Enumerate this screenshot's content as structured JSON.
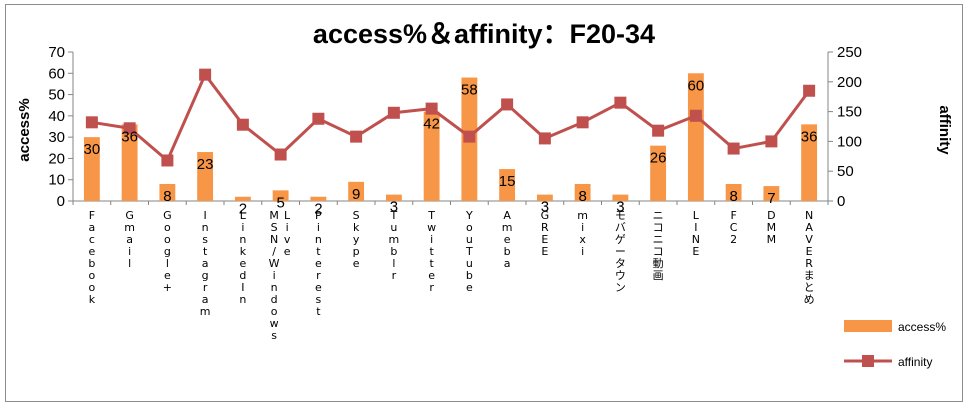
{
  "chart_data": {
    "type": "bar",
    "title": "access%＆affinity：F20-34",
    "ylabel": "access%",
    "y2label": "affinity",
    "ylim": [
      0,
      70
    ],
    "y2lim": [
      0,
      250
    ],
    "yticks": [
      0,
      10,
      20,
      30,
      40,
      50,
      60,
      70
    ],
    "y2ticks": [
      0,
      50,
      100,
      150,
      200,
      250
    ],
    "grid": false,
    "legend_position": "bottom-right",
    "categories": [
      "Facebook",
      "Gmail",
      "Google+",
      "Instagram",
      "LinkedIn",
      "MSN/Windows Live",
      "Pinterest",
      "Skype",
      "Tumblr",
      "Twitter",
      "YouTube",
      "Ameba",
      "GREE",
      "mixi",
      "モバゲータウン",
      "ニコニコ動画",
      "LINE",
      "FC2",
      "DMM",
      "NAVERまとめ"
    ],
    "category_label_lines": [
      [
        "Facebook"
      ],
      [
        "Gmail"
      ],
      [
        "Google+"
      ],
      [
        "Instagram"
      ],
      [
        "LinkedIn"
      ],
      [
        "MSN/Windows",
        "Live"
      ],
      [
        "Pinterest"
      ],
      [
        "Skype"
      ],
      [
        "Tumblr"
      ],
      [
        "Twitter"
      ],
      [
        "YouTube"
      ],
      [
        "Ameba"
      ],
      [
        "GREE"
      ],
      [
        "mixi"
      ],
      [
        "モバゲータウン"
      ],
      [
        "ニコニコ動画"
      ],
      [
        "LINE"
      ],
      [
        "FC2"
      ],
      [
        "DMM"
      ],
      [
        "NAVERまとめ"
      ]
    ],
    "series": [
      {
        "name": "access%",
        "type": "bar",
        "axis": "left",
        "color": "#f79646",
        "values": [
          30,
          36,
          8,
          23,
          2,
          5,
          2,
          9,
          3,
          42,
          58,
          15,
          3,
          8,
          3,
          26,
          60,
          8,
          7,
          36
        ],
        "labels": [
          "30",
          "36",
          "8",
          "23",
          "2",
          "5",
          "2",
          "9",
          "3",
          "42",
          "58",
          "15",
          "3",
          "8",
          "3",
          "26",
          "60",
          "8",
          "7",
          "36"
        ]
      },
      {
        "name": "affinity",
        "type": "line",
        "axis": "right",
        "color": "#c0504d",
        "values": [
          132,
          122,
          68,
          212,
          128,
          78,
          138,
          108,
          148,
          155,
          108,
          162,
          105,
          132,
          165,
          118,
          143,
          88,
          100,
          185
        ]
      }
    ]
  }
}
